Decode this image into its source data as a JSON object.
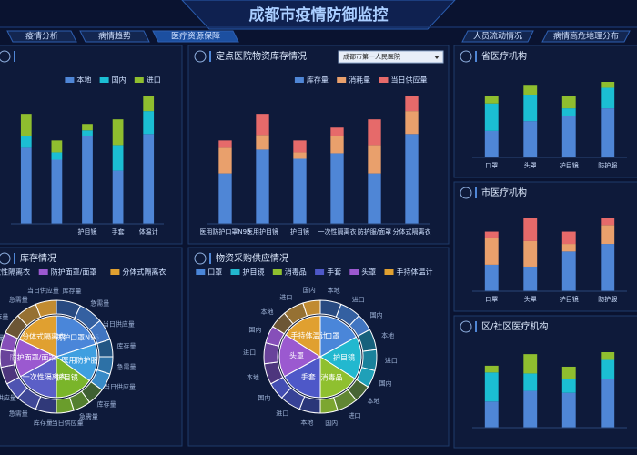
{
  "header": {
    "title": "成都市疫情防御监控"
  },
  "tabs_left": [
    "疫情分析",
    "病情趋势",
    "医疗资源保障"
  ],
  "tabs_right": [
    "人员流动情况",
    "病情高危地理分布"
  ],
  "active_tab": 2,
  "panels": [
    {
      "type": "bar",
      "stacked": true,
      "categories": [
        null,
        null,
        "护目镜",
        "手套",
        "体温计"
      ],
      "series": [
        {
          "name": "本地",
          "color": "#4f86d6",
          "values": [
            83,
            70,
            96,
            58,
            98
          ]
        },
        {
          "name": "国内",
          "color": "#1bbed3",
          "values": [
            13,
            8,
            6,
            28,
            25
          ]
        },
        {
          "name": "进口",
          "color": "#8fbe2f",
          "values": [
            24,
            13,
            7,
            28,
            17
          ]
        }
      ]
    },
    {
      "type": "bar",
      "stacked": true,
      "title": "定点医院物资库存情况",
      "dropdown": "成都市第一人民医院",
      "categories": [
        "医用防护口罩N95",
        "医用护目镜",
        "护目镜",
        "一次性隔离衣",
        "防护服/面罩",
        "分体式隔离衣"
      ],
      "series": [
        {
          "name": "库存量",
          "color": "#4f86d6",
          "values": [
            55,
            81,
            71,
            77,
            55,
            98
          ]
        },
        {
          "name": "消耗量",
          "color": "#e9a06c",
          "values": [
            28,
            16,
            7,
            19,
            31,
            25
          ]
        },
        {
          "name": "当日供应量",
          "color": "#e66a6a",
          "values": [
            8,
            23,
            13,
            9,
            28,
            17
          ]
        }
      ]
    },
    {
      "type": "bar",
      "stacked": true,
      "title": "省医疗机构",
      "categories": [
        "口罩",
        "头罩",
        "护目镜",
        "防护服"
      ],
      "series": [
        {
          "color": "#4f86d6",
          "values": [
            27,
            37,
            42,
            50
          ]
        },
        {
          "color": "#1bbed3",
          "values": [
            28,
            27,
            8,
            21
          ]
        },
        {
          "color": "#8fbe2f",
          "values": [
            8,
            10,
            13,
            6
          ]
        }
      ]
    },
    {
      "type": "bar",
      "stacked": true,
      "title": "市医疗机构",
      "categories": [
        "口罩",
        "头罩",
        "护目镜",
        "防护服"
      ],
      "series": [
        {
          "color": "#4f86d6",
          "values": [
            28,
            26,
            42,
            50
          ]
        },
        {
          "color": "#e9a06c",
          "values": [
            28,
            27,
            8,
            20
          ]
        },
        {
          "color": "#e66a6a",
          "values": [
            7,
            24,
            13,
            7
          ]
        }
      ]
    },
    {
      "type": "bar",
      "stacked": true,
      "title": "区/社区医疗机构",
      "series": [
        {
          "color": "#4f86d6",
          "values": [
            27,
            38,
            36,
            50
          ]
        },
        {
          "color": "#1bbed3",
          "values": [
            30,
            18,
            14,
            20
          ]
        },
        {
          "color": "#8fbe2f",
          "values": [
            7,
            20,
            13,
            8
          ]
        }
      ]
    },
    {
      "type": "pie",
      "title": "库存情况",
      "inner": {
        "labels": [
          "医用防护口罩N95",
          "医用防护服",
          "护目镜",
          "一次性隔离衣",
          "防护面罩/面罩",
          "分体式隔离衣"
        ],
        "values": [
          20,
          15,
          15,
          17,
          15,
          18
        ],
        "colors": [
          "#4a86d9",
          "#3f9fe0",
          "#7ab52a",
          "#5b5fc7",
          "#9b59d0",
          "#e0a030"
        ]
      },
      "outer": {
        "labels": [
          "库存量",
          "急需量",
          "当日供应量",
          "库存量",
          "急需量",
          "当日供应量",
          "库存量",
          "急需量",
          "当日供应量",
          "库存量",
          "急需量",
          "当日供应量",
          "库存量",
          "急需量",
          "当日供应量",
          "库存量",
          "急需量",
          "当日供应量"
        ],
        "values": [
          7,
          7,
          6,
          5,
          5,
          5,
          5,
          5,
          5,
          6,
          6,
          5,
          5,
          5,
          5,
          6,
          6,
          6
        ]
      }
    },
    {
      "type": "pie",
      "title": "物资采购供应情况",
      "inner": {
        "labels": [
          "口罩",
          "护目镜",
          "消毒品",
          "手套",
          "头罩",
          "手持体温计"
        ],
        "values": [
          17,
          17,
          16,
          17,
          17,
          16
        ],
        "colors": [
          "#4a86d9",
          "#22b8cf",
          "#8fc02f",
          "#4e58c8",
          "#9b59d0",
          "#e0a030"
        ]
      },
      "outer": {
        "labels": [
          "本地",
          "进口",
          "国内",
          "本地",
          "进口",
          "国内",
          "本地",
          "进口",
          "国内",
          "本地",
          "进口",
          "国内",
          "本地",
          "进口",
          "国内",
          "本地",
          "进口",
          "国内"
        ],
        "values": [
          6,
          6,
          5,
          6,
          6,
          5,
          5,
          6,
          5,
          6,
          6,
          5,
          6,
          6,
          5,
          5,
          6,
          5
        ]
      }
    }
  ]
}
